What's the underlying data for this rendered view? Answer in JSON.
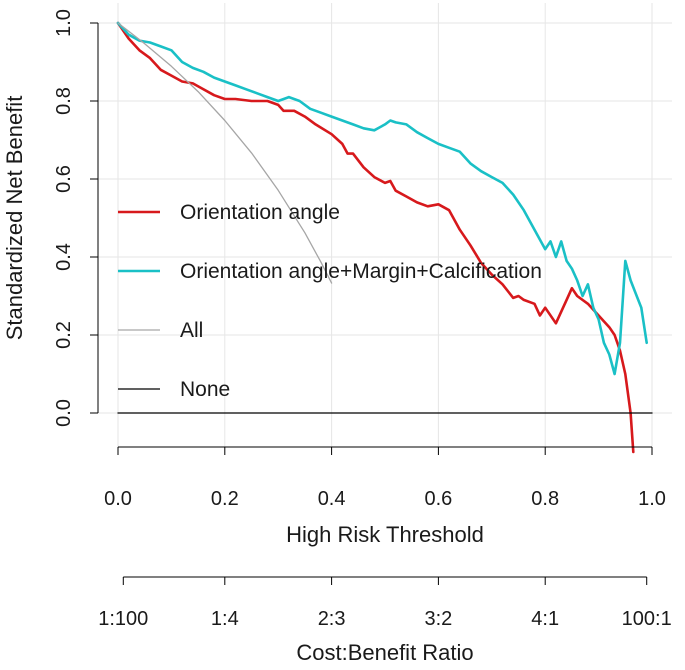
{
  "chart_data": {
    "type": "line",
    "title": "",
    "xlabel": "High Risk Threshold",
    "ylabel": "Standardized Net Benefit",
    "xlim": [
      0,
      1
    ],
    "ylim": [
      -0.1,
      1
    ],
    "x_ticks": [
      "0.0",
      "0.2",
      "0.4",
      "0.6",
      "0.8",
      "1.0"
    ],
    "y_ticks": [
      "0.0",
      "0.2",
      "0.4",
      "0.6",
      "0.8",
      "1.0"
    ],
    "grid": true,
    "legend_position": "left",
    "secondary_axis": {
      "label": "Cost:Benefit Ratio",
      "ticks": [
        {
          "x": 0.0099,
          "label": "1:100"
        },
        {
          "x": 0.2,
          "label": "1:4"
        },
        {
          "x": 0.4,
          "label": "2:3"
        },
        {
          "x": 0.6,
          "label": "3:2"
        },
        {
          "x": 0.8,
          "label": "4:1"
        },
        {
          "x": 0.9901,
          "label": "100:1"
        }
      ]
    },
    "series": [
      {
        "name": "Orientation angle",
        "color": "#d7191c",
        "x": [
          0,
          0.02,
          0.04,
          0.06,
          0.08,
          0.1,
          0.12,
          0.14,
          0.16,
          0.18,
          0.2,
          0.22,
          0.25,
          0.28,
          0.3,
          0.31,
          0.33,
          0.35,
          0.37,
          0.4,
          0.42,
          0.43,
          0.44,
          0.46,
          0.48,
          0.5,
          0.51,
          0.52,
          0.54,
          0.56,
          0.58,
          0.6,
          0.62,
          0.64,
          0.66,
          0.68,
          0.7,
          0.72,
          0.74,
          0.75,
          0.76,
          0.78,
          0.79,
          0.8,
          0.82,
          0.84,
          0.85,
          0.86,
          0.88,
          0.9,
          0.92,
          0.93,
          0.94,
          0.95,
          0.96,
          0.965
        ],
        "y": [
          1.0,
          0.96,
          0.93,
          0.91,
          0.88,
          0.865,
          0.85,
          0.845,
          0.83,
          0.815,
          0.805,
          0.805,
          0.8,
          0.8,
          0.79,
          0.775,
          0.775,
          0.76,
          0.74,
          0.715,
          0.69,
          0.665,
          0.665,
          0.63,
          0.605,
          0.59,
          0.595,
          0.57,
          0.555,
          0.54,
          0.53,
          0.535,
          0.52,
          0.47,
          0.43,
          0.385,
          0.355,
          0.33,
          0.295,
          0.3,
          0.29,
          0.28,
          0.25,
          0.27,
          0.23,
          0.29,
          0.32,
          0.3,
          0.28,
          0.25,
          0.22,
          0.2,
          0.16,
          0.1,
          0.0,
          -0.1
        ]
      },
      {
        "name": "Orientation angle+Margin+Calcification",
        "color": "#1ac0c6",
        "x": [
          0,
          0.02,
          0.04,
          0.06,
          0.08,
          0.1,
          0.12,
          0.14,
          0.16,
          0.18,
          0.2,
          0.22,
          0.24,
          0.26,
          0.28,
          0.3,
          0.32,
          0.34,
          0.36,
          0.38,
          0.4,
          0.42,
          0.44,
          0.46,
          0.48,
          0.5,
          0.51,
          0.52,
          0.54,
          0.56,
          0.58,
          0.6,
          0.62,
          0.64,
          0.66,
          0.68,
          0.7,
          0.72,
          0.74,
          0.76,
          0.78,
          0.8,
          0.81,
          0.82,
          0.83,
          0.84,
          0.85,
          0.86,
          0.87,
          0.88,
          0.89,
          0.9,
          0.91,
          0.92,
          0.93,
          0.94,
          0.95,
          0.96,
          0.98,
          0.99
        ],
        "y": [
          1.0,
          0.97,
          0.955,
          0.95,
          0.94,
          0.93,
          0.9,
          0.885,
          0.875,
          0.86,
          0.85,
          0.84,
          0.83,
          0.82,
          0.81,
          0.8,
          0.81,
          0.8,
          0.78,
          0.77,
          0.76,
          0.75,
          0.74,
          0.73,
          0.725,
          0.74,
          0.75,
          0.745,
          0.74,
          0.72,
          0.705,
          0.69,
          0.68,
          0.67,
          0.64,
          0.62,
          0.605,
          0.59,
          0.56,
          0.52,
          0.47,
          0.42,
          0.44,
          0.4,
          0.44,
          0.39,
          0.37,
          0.34,
          0.3,
          0.33,
          0.27,
          0.24,
          0.18,
          0.15,
          0.1,
          0.18,
          0.39,
          0.34,
          0.27,
          0.18
        ]
      },
      {
        "name": "All",
        "color": "#a6a6a6",
        "x": [
          0,
          0.05,
          0.1,
          0.15,
          0.2,
          0.25,
          0.3,
          0.35,
          0.38,
          0.4
        ],
        "y": [
          1.0,
          0.947,
          0.889,
          0.824,
          0.75,
          0.667,
          0.571,
          0.462,
          0.387,
          0.333
        ]
      },
      {
        "name": "None",
        "color": "#000000",
        "x": [
          0,
          1
        ],
        "y": [
          0,
          0
        ]
      }
    ]
  }
}
